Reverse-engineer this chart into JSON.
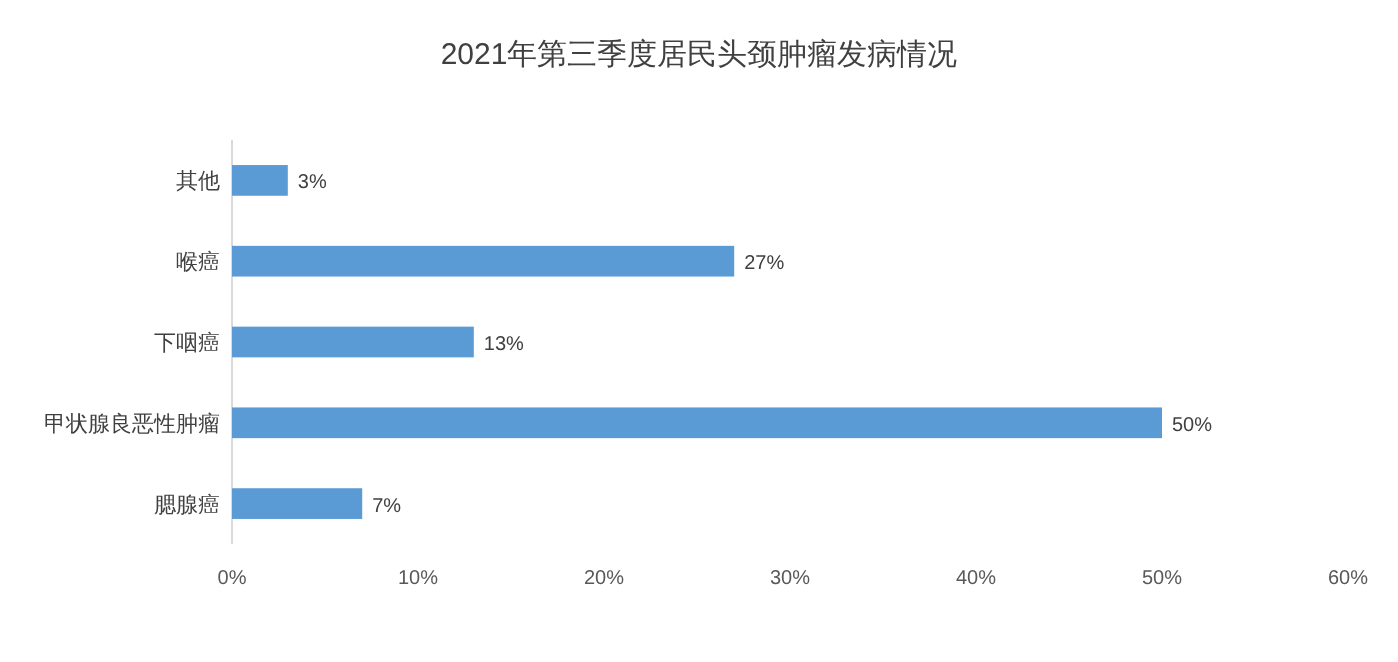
{
  "chart_data": {
    "type": "bar",
    "orientation": "horizontal",
    "title": "2021年第三季度居民头颈肿瘤发病情况",
    "categories": [
      "其他",
      "喉癌",
      "下咽癌",
      "甲状腺良恶性肿瘤",
      "腮腺癌"
    ],
    "values": [
      3,
      27,
      13,
      50,
      7
    ],
    "value_labels": [
      "3%",
      "27%",
      "13%",
      "50%",
      "7%"
    ],
    "color": "#5b9bd5",
    "xlim": [
      0,
      60
    ],
    "xticks": [
      {
        "value": 0,
        "label": "0%"
      },
      {
        "value": 10,
        "label": "10%"
      },
      {
        "value": 20,
        "label": "20%"
      },
      {
        "value": 30,
        "label": "30%"
      },
      {
        "value": 40,
        "label": "40%"
      },
      {
        "value": 50,
        "label": "50%"
      },
      {
        "value": 60,
        "label": "60%"
      }
    ],
    "grid": false
  }
}
